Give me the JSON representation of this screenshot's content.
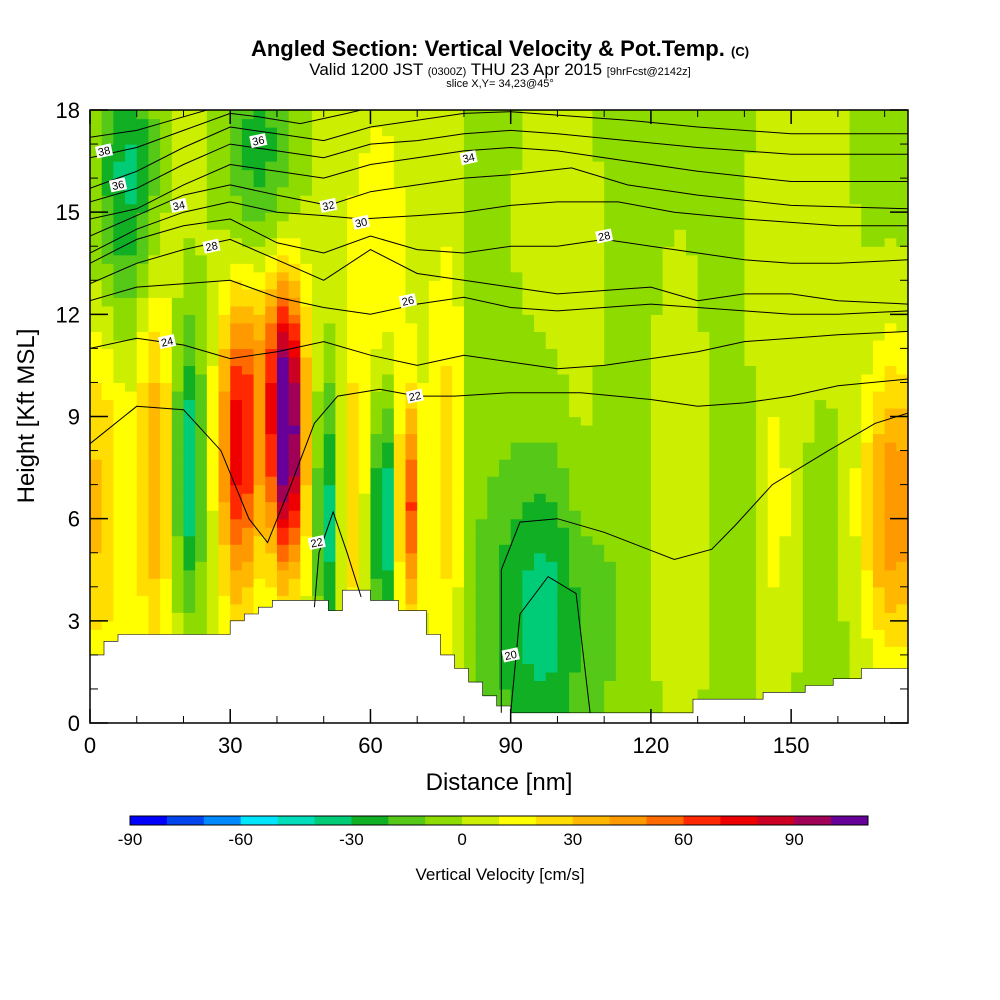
{
  "header": {
    "title_main": "Angled Section: Vertical Velocity & Pot.Temp.",
    "title_mark": "(C)",
    "subtitle_valid": "Valid 1200 JST",
    "subtitle_z": "(0300Z)",
    "subtitle_date": "THU 23 Apr 2015",
    "subtitle_fcst": "[9hrFcst@2142z]",
    "slice": "slice X,Y= 34,23@45°"
  },
  "chart_data": {
    "type": "heatmap",
    "title": "Angled Section: Vertical Velocity & Pot.Temp. (C)",
    "xlabel": "Distance [nm]",
    "ylabel": "Height [Kft MSL]",
    "xlim": [
      0,
      175
    ],
    "ylim": [
      0,
      18
    ],
    "x_ticks": [
      0,
      30,
      60,
      90,
      120,
      150
    ],
    "x_tick_labels": [
      "0",
      "30",
      "60",
      "90",
      "120",
      "150"
    ],
    "y_ticks": [
      0,
      3,
      6,
      9,
      12,
      15,
      18
    ],
    "y_tick_labels": [
      "0",
      "3",
      "6",
      "9",
      "12",
      "15",
      "18"
    ],
    "colorbar": {
      "label": "Vertical Velocity [cm/s]",
      "min": -90,
      "max": 110,
      "step": 10,
      "tick_values": [
        -90,
        -60,
        -30,
        0,
        30,
        60,
        90
      ],
      "tick_labels": [
        "-90",
        "-60",
        "-30",
        "0",
        "30",
        "60",
        "90"
      ],
      "colors": [
        "#0000ff",
        "#0044ee",
        "#0088ff",
        "#00e6ff",
        "#00ddbb",
        "#00cc77",
        "#11b024",
        "#55c818",
        "#8edb00",
        "#ccee00",
        "#ffff00",
        "#ffdd00",
        "#ffb700",
        "#ff9900",
        "#ff6a00",
        "#ff2800",
        "#ee0000",
        "#cc0022",
        "#a00055",
        "#660099"
      ]
    },
    "terrain_profile": {
      "x": [
        0,
        3,
        6,
        12,
        30,
        33,
        36,
        39,
        42,
        48,
        51,
        54,
        57,
        60,
        66,
        69,
        72,
        75,
        78,
        81,
        84,
        87,
        90,
        126,
        129,
        135,
        144,
        150,
        153,
        159,
        165,
        175
      ],
      "z": [
        2.0,
        2.4,
        2.6,
        2.6,
        3.0,
        3.2,
        3.4,
        3.6,
        3.6,
        3.6,
        3.3,
        3.9,
        3.9,
        3.6,
        3.3,
        3.3,
        2.6,
        2.0,
        1.6,
        1.2,
        0.8,
        0.5,
        0.3,
        0.3,
        0.7,
        0.7,
        0.9,
        0.9,
        1.1,
        1.3,
        1.6,
        1.6
      ]
    },
    "velocity_cells": [
      {
        "x": 2,
        "z": 6.5,
        "sx": 3.5,
        "sz": 3.5,
        "w": 28
      },
      {
        "x": 14,
        "z": 7.5,
        "sx": 3,
        "sz": 4,
        "w": 35
      },
      {
        "x": 21,
        "z": 7.5,
        "sx": 2.5,
        "sz": 3,
        "w": -45
      },
      {
        "x": 32,
        "z": 8.2,
        "sx": 3,
        "sz": 3.2,
        "w": 72
      },
      {
        "x": 42,
        "z": 8.3,
        "sx": 2.6,
        "sz": 2.6,
        "w": 112
      },
      {
        "x": 40,
        "z": 11.5,
        "sx": 4,
        "sz": 2,
        "w": 30
      },
      {
        "x": 51,
        "z": 6.0,
        "sx": 2,
        "sz": 3,
        "w": -40
      },
      {
        "x": 56,
        "z": 6.5,
        "sx": 2.2,
        "sz": 4,
        "w": 20
      },
      {
        "x": 63,
        "z": 6.0,
        "sx": 2,
        "sz": 2.5,
        "w": -48
      },
      {
        "x": 68,
        "z": 6.3,
        "sx": 1.6,
        "sz": 2.2,
        "w": 62
      },
      {
        "x": 76,
        "z": 7.0,
        "sx": 2.5,
        "sz": 4,
        "w": 22
      },
      {
        "x": 97,
        "z": 3.2,
        "sx": 9,
        "sz": 3.2,
        "w": -32
      },
      {
        "x": 105,
        "z": 6.0,
        "sx": 3,
        "sz": 4,
        "w": 8
      },
      {
        "x": 126,
        "z": 6.0,
        "sx": 4,
        "sz": 5,
        "w": 12
      },
      {
        "x": 147,
        "z": 6.0,
        "sx": 3,
        "sz": 4,
        "w": 15
      },
      {
        "x": 172,
        "z": 6.3,
        "sx": 5,
        "sz": 3.2,
        "w": 52
      },
      {
        "x": 8,
        "z": 16.0,
        "sx": 5,
        "sz": 3,
        "w": -38
      },
      {
        "x": 36,
        "z": 16.5,
        "sx": 6,
        "sz": 3,
        "w": -30
      },
      {
        "x": 62,
        "z": 13.5,
        "sx": 4,
        "sz": 3,
        "w": 12
      },
      {
        "x": 100,
        "z": 14.5,
        "sx": 8,
        "sz": 4,
        "w": 6
      },
      {
        "x": 152,
        "z": 15.0,
        "sx": 8,
        "sz": 4,
        "w": 8
      }
    ],
    "theta_contours": [
      {
        "label": "20",
        "label_at": [
          90,
          2.0
        ],
        "points": [
          [
            88,
            0.3
          ],
          [
            88,
            4.5
          ],
          [
            92,
            5.9
          ],
          [
            100,
            6.0
          ],
          [
            110,
            5.6
          ],
          [
            125,
            4.8
          ],
          [
            133,
            5.1
          ],
          [
            138,
            5.8
          ],
          [
            146,
            7.0
          ],
          [
            158,
            8.0
          ],
          [
            168,
            8.8
          ],
          [
            175,
            9.1
          ]
        ]
      },
      {
        "label": "20",
        "label_at": [
          90,
          2.0
        ],
        "points": [
          [
            90,
            0.3
          ],
          [
            92,
            3.2
          ],
          [
            98,
            4.3
          ],
          [
            104,
            3.8
          ],
          [
            107,
            0.3
          ]
        ]
      },
      {
        "label": "22",
        "label_at": [
          69.5,
          9.6
        ],
        "points": [
          [
            0,
            8.2
          ],
          [
            10,
            9.3
          ],
          [
            20,
            9.2
          ],
          [
            28,
            8.0
          ],
          [
            34,
            6.0
          ],
          [
            38,
            5.3
          ],
          [
            43,
            7.0
          ],
          [
            48,
            8.8
          ],
          [
            53,
            9.6
          ],
          [
            62,
            9.8
          ],
          [
            70,
            9.6
          ],
          [
            78,
            9.6
          ],
          [
            90,
            9.7
          ],
          [
            105,
            9.7
          ],
          [
            120,
            9.5
          ],
          [
            130,
            9.3
          ],
          [
            140,
            9.4
          ],
          [
            150,
            9.6
          ],
          [
            160,
            9.9
          ],
          [
            175,
            10.1
          ]
        ]
      },
      {
        "label": "22",
        "label_at": [
          48.5,
          5.3
        ],
        "points": [
          [
            48,
            3.4
          ],
          [
            49,
            5.0
          ],
          [
            52,
            6.2
          ],
          [
            55,
            5.0
          ],
          [
            58,
            3.7
          ]
        ]
      },
      {
        "label": "24",
        "label_at": [
          16.5,
          11.2
        ],
        "points": [
          [
            0,
            11.0
          ],
          [
            10,
            11.3
          ],
          [
            20,
            11.1
          ],
          [
            30,
            10.7
          ],
          [
            40,
            10.9
          ],
          [
            50,
            11.2
          ],
          [
            60,
            10.8
          ],
          [
            70,
            10.5
          ],
          [
            80,
            10.8
          ],
          [
            90,
            10.6
          ],
          [
            100,
            10.4
          ],
          [
            110,
            10.5
          ],
          [
            120,
            10.7
          ],
          [
            130,
            10.9
          ],
          [
            140,
            11.2
          ],
          [
            150,
            11.3
          ],
          [
            160,
            11.4
          ],
          [
            175,
            11.5
          ]
        ]
      },
      {
        "label": "26",
        "label_at": [
          68,
          12.4
        ],
        "points": [
          [
            0,
            12.4
          ],
          [
            10,
            12.8
          ],
          [
            20,
            12.9
          ],
          [
            30,
            13.0
          ],
          [
            40,
            12.5
          ],
          [
            50,
            12.2
          ],
          [
            60,
            12.0
          ],
          [
            70,
            12.3
          ],
          [
            80,
            12.5
          ],
          [
            90,
            12.2
          ],
          [
            100,
            12.1
          ],
          [
            110,
            12.2
          ],
          [
            120,
            12.3
          ],
          [
            130,
            12.2
          ],
          [
            140,
            12.1
          ],
          [
            150,
            12.0
          ],
          [
            160,
            12.0
          ],
          [
            175,
            12.1
          ]
        ]
      },
      {
        "label": "28",
        "label_at": [
          26,
          14.0
        ],
        "points": [
          [
            0,
            12.9
          ],
          [
            10,
            13.5
          ],
          [
            20,
            13.9
          ],
          [
            30,
            14.2
          ],
          [
            40,
            13.6
          ],
          [
            50,
            13.0
          ],
          [
            60,
            13.9
          ],
          [
            70,
            13.2
          ],
          [
            80,
            13.0
          ],
          [
            90,
            12.8
          ],
          [
            100,
            12.6
          ],
          [
            110,
            12.7
          ],
          [
            120,
            12.8
          ],
          [
            130,
            12.4
          ],
          [
            140,
            12.6
          ],
          [
            150,
            12.6
          ],
          [
            160,
            12.4
          ],
          [
            175,
            12.3
          ]
        ]
      },
      {
        "label": "28",
        "label_at": [
          110,
          14.3
        ],
        "points": [
          [
            0,
            13.5
          ],
          [
            10,
            14.2
          ],
          [
            20,
            14.6
          ],
          [
            30,
            14.8
          ],
          [
            40,
            14.1
          ],
          [
            50,
            13.8
          ],
          [
            60,
            14.3
          ],
          [
            70,
            13.9
          ],
          [
            80,
            13.8
          ],
          [
            90,
            14.0
          ],
          [
            100,
            14.0
          ],
          [
            110,
            14.2
          ],
          [
            120,
            14.0
          ],
          [
            130,
            13.8
          ],
          [
            140,
            13.6
          ],
          [
            150,
            13.5
          ],
          [
            160,
            13.5
          ],
          [
            175,
            13.6
          ]
        ]
      },
      {
        "label": "30",
        "label_at": [
          58,
          14.7
        ],
        "points": [
          [
            0,
            13.8
          ],
          [
            10,
            14.5
          ],
          [
            20,
            15.0
          ],
          [
            30,
            15.3
          ],
          [
            40,
            15.0
          ],
          [
            50,
            14.9
          ],
          [
            58,
            14.8
          ],
          [
            70,
            14.9
          ],
          [
            80,
            15.0
          ],
          [
            90,
            15.2
          ],
          [
            100,
            15.3
          ],
          [
            113,
            15.3
          ],
          [
            125,
            15.0
          ],
          [
            140,
            14.8
          ],
          [
            150,
            14.7
          ],
          [
            160,
            14.6
          ],
          [
            175,
            14.6
          ]
        ]
      },
      {
        "label": "32",
        "label_at": [
          51,
          15.2
        ],
        "points": [
          [
            0,
            14.3
          ],
          [
            10,
            14.9
          ],
          [
            20,
            15.5
          ],
          [
            30,
            15.8
          ],
          [
            40,
            15.5
          ],
          [
            51,
            15.2
          ],
          [
            60,
            15.6
          ],
          [
            70,
            15.8
          ],
          [
            80,
            16.0
          ],
          [
            90,
            16.1
          ],
          [
            103,
            16.3
          ],
          [
            115,
            15.8
          ],
          [
            130,
            15.5
          ],
          [
            150,
            15.2
          ],
          [
            175,
            15.1
          ]
        ]
      },
      {
        "label": "34",
        "label_at": [
          19,
          15.2
        ],
        "points": [
          [
            0,
            14.8
          ],
          [
            10,
            15.1
          ],
          [
            20,
            15.8
          ],
          [
            30,
            16.4
          ],
          [
            40,
            16.2
          ],
          [
            50,
            16.0
          ],
          [
            60,
            16.4
          ],
          [
            70,
            16.6
          ],
          [
            80,
            16.8
          ],
          [
            90,
            16.9
          ],
          [
            100,
            16.8
          ],
          [
            115,
            16.5
          ],
          [
            130,
            16.2
          ],
          [
            150,
            15.9
          ],
          [
            175,
            15.9
          ]
        ]
      },
      {
        "label": "34",
        "label_at": [
          81,
          16.6
        ],
        "points": [
          [
            0,
            15.3
          ],
          [
            10,
            15.7
          ],
          [
            20,
            16.4
          ],
          [
            30,
            17.0
          ],
          [
            40,
            16.8
          ],
          [
            50,
            16.6
          ],
          [
            60,
            17.0
          ],
          [
            70,
            17.1
          ],
          [
            80,
            17.3
          ],
          [
            90,
            17.4
          ],
          [
            100,
            17.3
          ],
          [
            115,
            17.1
          ],
          [
            130,
            16.9
          ],
          [
            150,
            16.7
          ],
          [
            175,
            16.7
          ]
        ]
      },
      {
        "label": "36",
        "label_at": [
          6,
          15.8
        ],
        "points": [
          [
            0,
            15.7
          ],
          [
            10,
            16.2
          ],
          [
            20,
            16.9
          ],
          [
            30,
            17.5
          ],
          [
            40,
            17.3
          ],
          [
            50,
            17.1
          ],
          [
            60,
            17.5
          ],
          [
            70,
            17.7
          ],
          [
            80,
            17.9
          ],
          [
            90,
            17.95
          ],
          [
            100,
            17.85
          ],
          [
            115,
            17.7
          ],
          [
            130,
            17.5
          ],
          [
            150,
            17.3
          ],
          [
            175,
            17.3
          ]
        ]
      },
      {
        "label": "36",
        "label_at": [
          36,
          17.1
        ],
        "points": [
          [
            0,
            16.6
          ],
          [
            10,
            16.9
          ],
          [
            20,
            17.4
          ],
          [
            30,
            17.9
          ],
          [
            36,
            17.8
          ],
          [
            45,
            17.6
          ],
          [
            55,
            17.9
          ],
          [
            58,
            18.0
          ]
        ]
      },
      {
        "label": "38",
        "label_at": [
          3,
          16.8
        ],
        "points": [
          [
            0,
            17.2
          ],
          [
            10,
            17.4
          ],
          [
            20,
            17.8
          ],
          [
            25,
            18.0
          ]
        ]
      }
    ]
  }
}
